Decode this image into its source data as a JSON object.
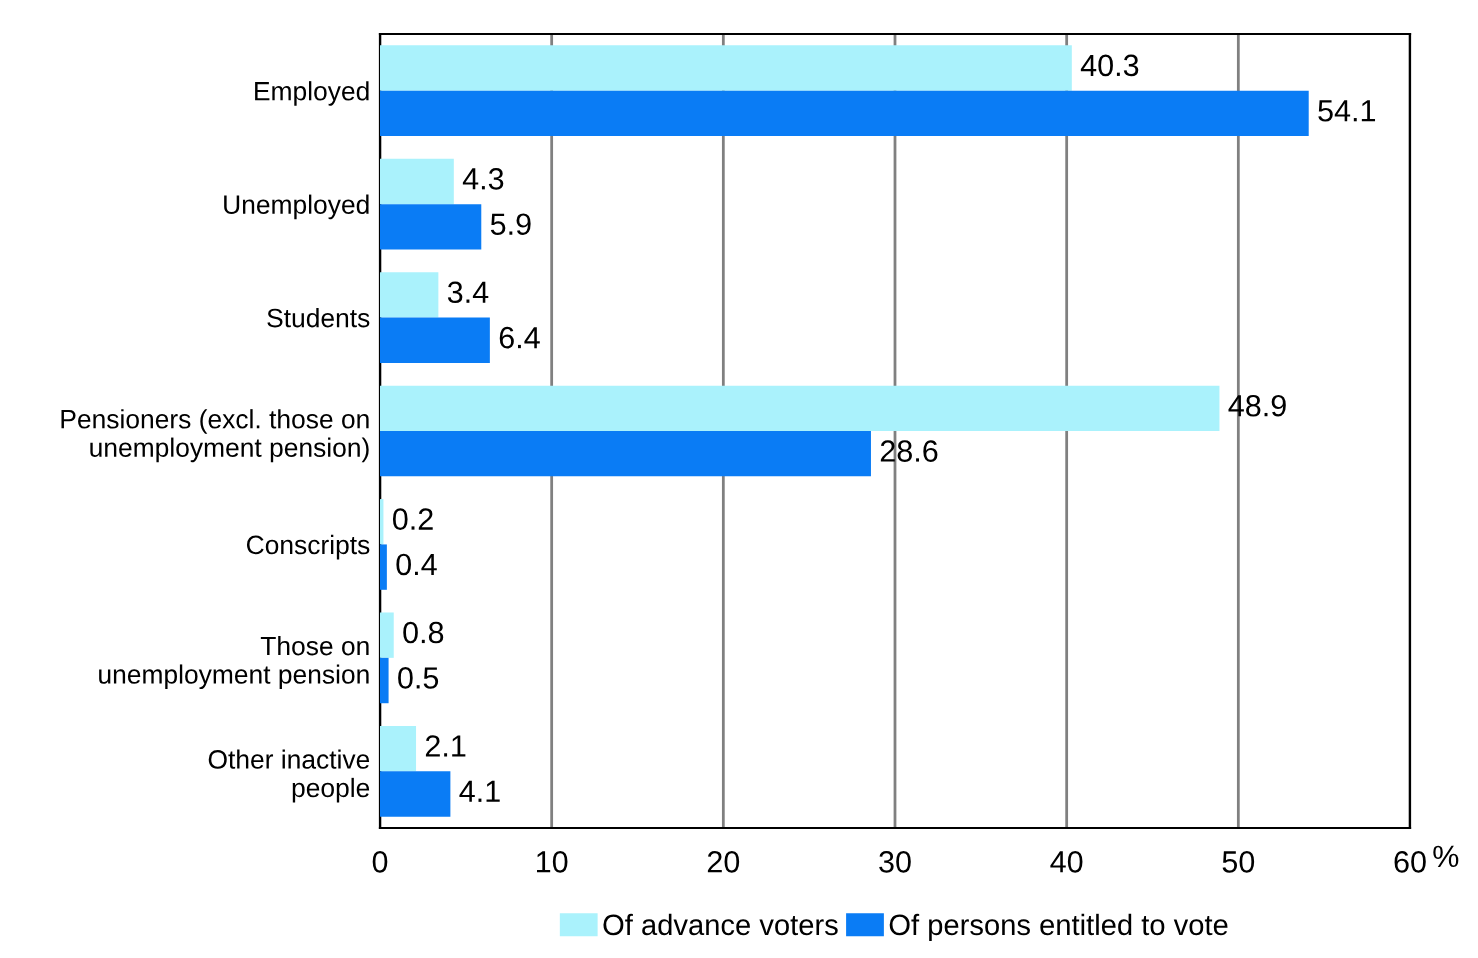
{
  "chart_data": {
    "type": "bar",
    "orientation": "horizontal",
    "categories": [
      "Employed",
      "Unemployed",
      "Students",
      "Pensioners (excl. those on\nunemployment pension)",
      "Conscripts",
      "Those on\nunemployment pension",
      "Other inactive\npeople"
    ],
    "series": [
      {
        "name": "Of advance voters",
        "color": "#aaf2fc",
        "values": [
          40.3,
          4.3,
          3.4,
          48.9,
          0.2,
          0.8,
          2.1
        ]
      },
      {
        "name": "Of persons entitled to vote",
        "color": "#0a7cf5",
        "values": [
          54.1,
          5.9,
          6.4,
          28.6,
          0.4,
          0.5,
          4.1
        ]
      }
    ],
    "xlim": [
      0,
      60
    ],
    "xticks": [
      0,
      10,
      20,
      30,
      40,
      50,
      60
    ],
    "xlabel": "%",
    "grid": "x",
    "legend": "bottom",
    "data_labels": true
  }
}
